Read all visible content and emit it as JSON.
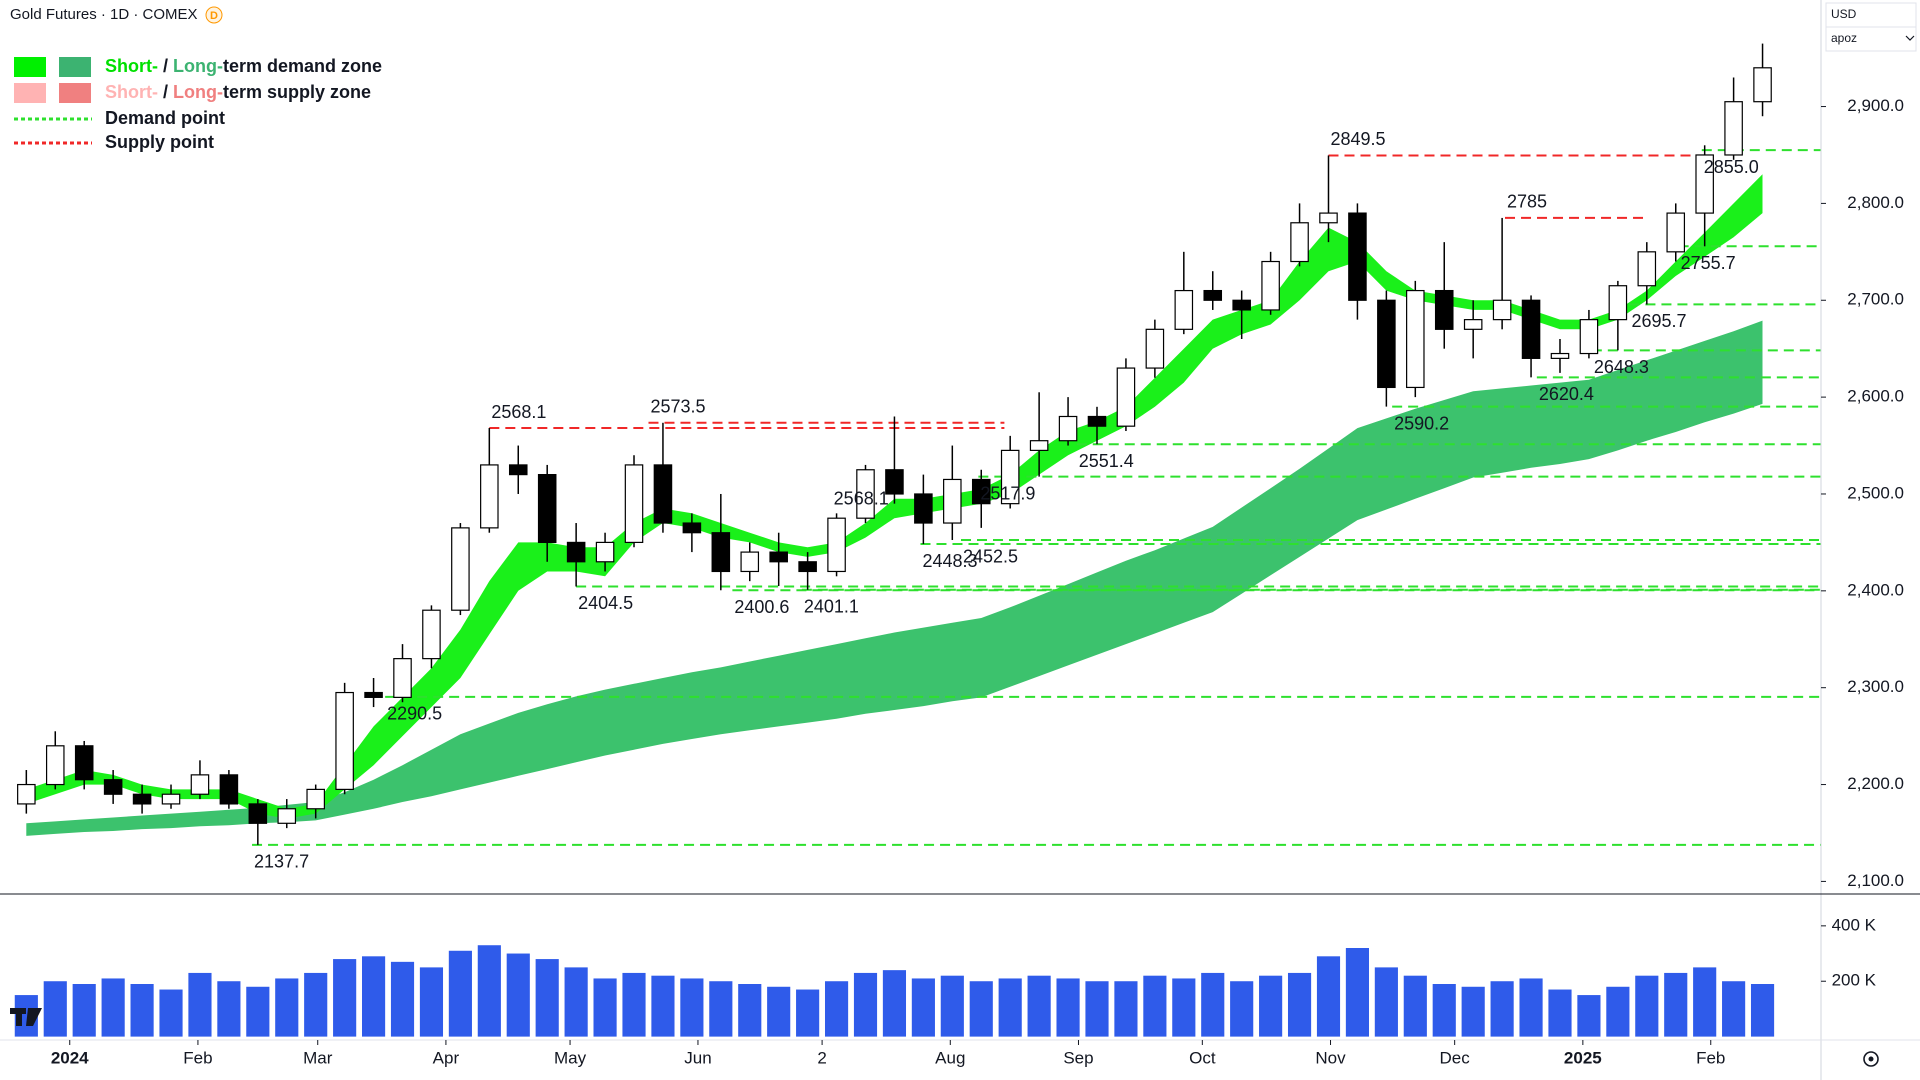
{
  "chart_data": {
    "type": "candlestick",
    "title": "Gold Futures · 1D · COMEX",
    "badge": "D",
    "currency": "USD",
    "scale_mode": "apoz",
    "x": [
      0.5,
      1.5,
      2.5,
      3.5,
      4.5,
      5.5,
      6.5,
      7.5,
      8.5,
      9.5,
      10.5,
      11.5,
      12.5,
      13.5,
      14.5,
      15.5,
      16.5,
      17.5,
      18.5,
      19.5,
      20.5,
      21.5,
      22.5,
      23.5,
      24.5,
      25.5,
      26.5,
      27.5,
      28.5,
      29.5,
      30.5,
      31.5,
      32.5,
      33.5,
      34.5,
      35.5,
      36.5,
      37.5,
      38.5,
      39.5,
      40.5,
      41.5,
      42.5,
      43.5,
      44.5,
      45.5,
      46.5,
      47.5,
      48.5,
      49.5,
      50.5,
      51.5,
      52.5,
      53.5,
      54.5,
      55.5,
      56.5,
      57.5,
      58.5,
      59.5,
      60.5
    ],
    "open": [
      2180,
      2200,
      2240,
      2205,
      2190,
      2180,
      2190,
      2210,
      2180,
      2160,
      2175,
      2195,
      2295,
      2290,
      2330,
      2380,
      2465,
      2530,
      2520,
      2450,
      2430,
      2450,
      2530,
      2470,
      2460,
      2420,
      2440,
      2430,
      2420,
      2475,
      2525,
      2500,
      2470,
      2515,
      2490,
      2545,
      2555,
      2580,
      2570,
      2630,
      2670,
      2710,
      2700,
      2690,
      2740,
      2780,
      2790,
      2700,
      2610,
      2710,
      2670,
      2680,
      2700,
      2640,
      2645,
      2680,
      2715,
      2750,
      2790,
      2850,
      2905
    ],
    "high": [
      2215,
      2255,
      2245,
      2215,
      2200,
      2200,
      2225,
      2215,
      2185,
      2185,
      2200,
      2305,
      2310,
      2345,
      2385,
      2470,
      2568.1,
      2550,
      2530,
      2470,
      2460,
      2540,
      2573.5,
      2480,
      2500,
      2450,
      2460,
      2440,
      2480,
      2530,
      2580,
      2520,
      2550,
      2525,
      2560,
      2605,
      2600,
      2590,
      2640,
      2680,
      2750,
      2730,
      2710,
      2750,
      2800,
      2849.5,
      2800,
      2710,
      2720,
      2760,
      2700,
      2785,
      2705,
      2660,
      2690,
      2720,
      2760,
      2800,
      2860,
      2930,
      2965
    ],
    "low": [
      2170,
      2195,
      2195,
      2180,
      2170,
      2175,
      2185,
      2175,
      2137.7,
      2155,
      2165,
      2190,
      2280,
      2285,
      2320,
      2375,
      2460,
      2500,
      2430,
      2404.5,
      2420,
      2445,
      2460,
      2440,
      2400.6,
      2410,
      2405,
      2401.1,
      2415,
      2470,
      2490,
      2448.3,
      2452.5,
      2465,
      2485,
      2517.9,
      2550,
      2551.4,
      2565,
      2620,
      2665,
      2690,
      2660,
      2685,
      2735,
      2760,
      2680,
      2590.2,
      2600,
      2650,
      2640,
      2670,
      2620.4,
      2625,
      2640,
      2648.3,
      2695.7,
      2740,
      2755.7,
      2845,
      2890
    ],
    "close": [
      2200,
      2240,
      2205,
      2190,
      2180,
      2190,
      2210,
      2180,
      2160,
      2175,
      2195,
      2295,
      2290,
      2330,
      2380,
      2465,
      2530,
      2520,
      2450,
      2430,
      2450,
      2530,
      2470,
      2460,
      2420,
      2440,
      2430,
      2420,
      2475,
      2525,
      2500,
      2470,
      2515,
      2490,
      2545,
      2555,
      2580,
      2570,
      2630,
      2670,
      2710,
      2700,
      2690,
      2740,
      2780,
      2790,
      2700,
      2610,
      2710,
      2670,
      2680,
      2700,
      2640,
      2645,
      2680,
      2715,
      2750,
      2790,
      2850,
      2905,
      2940
    ],
    "candle_up_color": "#ffffff",
    "candle_down_color": "#000000",
    "candle_edge_color": "#000000",
    "xlim": [
      -0.41,
      62.52
    ],
    "xticks": [
      {
        "value": 2,
        "label": "2024",
        "major": true
      },
      {
        "value": 6.43,
        "label": "Feb"
      },
      {
        "value": 10.57,
        "label": "Mar"
      },
      {
        "value": 15,
        "label": "Apr"
      },
      {
        "value": 19.29,
        "label": "May"
      },
      {
        "value": 23.71,
        "label": "Jun"
      },
      {
        "value": 28,
        "label": "2"
      },
      {
        "value": 32.43,
        "label": "Aug"
      },
      {
        "value": 36.86,
        "label": "Sep"
      },
      {
        "value": 41.14,
        "label": "Oct"
      },
      {
        "value": 45.57,
        "label": "Nov"
      },
      {
        "value": 49.86,
        "label": "Dec"
      },
      {
        "value": 54.29,
        "label": "2025",
        "major": true
      },
      {
        "value": 58.71,
        "label": "Feb"
      }
    ],
    "ylim": [
      2087,
      3010
    ],
    "yticks": [
      {
        "value": 2100,
        "label": "2,100.0"
      },
      {
        "value": 2200,
        "label": "2,200.0"
      },
      {
        "value": 2300,
        "label": "2,300.0"
      },
      {
        "value": 2400,
        "label": "2,400.0"
      },
      {
        "value": 2500,
        "label": "2,500.0"
      },
      {
        "value": 2600,
        "label": "2,600.0"
      },
      {
        "value": 2700,
        "label": "2,700.0"
      },
      {
        "value": 2800,
        "label": "2,800.0"
      },
      {
        "value": 2900,
        "label": "2,900.0"
      }
    ],
    "zones": [
      {
        "color": "#3cc26d",
        "upper": [
          2160,
          2162,
          2164,
          2166,
          2168,
          2170,
          2172,
          2174,
          2176,
          2179,
          2182,
          2192,
          2205,
          2220,
          2236,
          2252,
          2263,
          2274,
          2283,
          2291,
          2298,
          2304,
          2310,
          2316,
          2321,
          2327,
          2333,
          2339,
          2345,
          2351,
          2357,
          2362,
          2367,
          2372,
          2383,
          2395,
          2407,
          2419,
          2431,
          2442,
          2454,
          2466,
          2486,
          2506,
          2526,
          2547,
          2568,
          2578,
          2588,
          2597,
          2606,
          2609,
          2612,
          2615,
          2618,
          2628,
          2638,
          2648,
          2658,
          2668,
          2679
        ],
        "lower": [
          2147,
          2149,
          2151,
          2152,
          2154,
          2155,
          2157,
          2158,
          2160,
          2161,
          2163,
          2169,
          2175,
          2182,
          2188,
          2195,
          2202,
          2209,
          2216,
          2223,
          2230,
          2236,
          2242,
          2247,
          2252,
          2256,
          2260,
          2264,
          2268,
          2273,
          2277,
          2281,
          2286,
          2290,
          2301,
          2312,
          2323,
          2334,
          2345,
          2356,
          2367,
          2378,
          2397,
          2416,
          2435,
          2454,
          2473,
          2484,
          2495,
          2506,
          2517,
          2522,
          2527,
          2531,
          2536,
          2545,
          2555,
          2564,
          2574,
          2583,
          2593
        ]
      },
      {
        "color": "#1af01a",
        "upper": [
          2195,
          2205,
          2215,
          2210,
          2200,
          2195,
          2195,
          2195,
          2185,
          2175,
          2180,
          2220,
          2260,
          2290,
          2320,
          2360,
          2410,
          2450,
          2450,
          2445,
          2445,
          2470,
          2485,
          2480,
          2470,
          2460,
          2450,
          2445,
          2450,
          2470,
          2495,
          2495,
          2500,
          2505,
          2520,
          2545,
          2565,
          2575,
          2590,
          2620,
          2650,
          2680,
          2690,
          2700,
          2740,
          2775,
          2760,
          2730,
          2710,
          2705,
          2700,
          2700,
          2690,
          2680,
          2680,
          2690,
          2710,
          2740,
          2770,
          2800,
          2830
        ],
        "lower": [
          2180,
          2190,
          2200,
          2200,
          2190,
          2185,
          2185,
          2185,
          2170,
          2165,
          2170,
          2195,
          2220,
          2250,
          2280,
          2310,
          2355,
          2400,
          2420,
          2420,
          2415,
          2450,
          2470,
          2465,
          2455,
          2450,
          2440,
          2435,
          2440,
          2455,
          2475,
          2480,
          2485,
          2490,
          2500,
          2520,
          2540,
          2555,
          2570,
          2590,
          2615,
          2650,
          2665,
          2675,
          2700,
          2730,
          2740,
          2710,
          2700,
          2695,
          2690,
          2690,
          2680,
          2670,
          2670,
          2680,
          2700,
          2725,
          2745,
          2765,
          2790
        ]
      }
    ],
    "levels": [
      {
        "kind": "supply",
        "value": 2568.1,
        "label": "2568.1",
        "x_start": 16.5,
        "x_end": 34.3
      },
      {
        "kind": "supply",
        "value": 2573.5,
        "label": "2573.5",
        "x_start": 22.0,
        "x_end": 34.3
      },
      {
        "kind": "supply",
        "value": 2849.5,
        "label": "2849.5",
        "x_start": 45.5,
        "x_end": 58.4
      },
      {
        "kind": "supply",
        "value": 2785,
        "label": "2785",
        "x_start": 51.6,
        "x_end": 56.5
      },
      {
        "kind": "demand",
        "value": 2137.7,
        "label": "2137.7",
        "x_start": 8.3
      },
      {
        "kind": "demand",
        "value": 2290.5,
        "label": "2290.5",
        "x_start": 12.9
      },
      {
        "kind": "demand",
        "value": 2404.5,
        "label": "2404.5",
        "x_start": 19.5
      },
      {
        "kind": "demand",
        "value": 2400.6,
        "label": "2400.6",
        "x_start": 24.9
      },
      {
        "kind": "demand",
        "value": 2401.1,
        "label": "2401.1",
        "x_start": 27.3
      },
      {
        "kind": "demand",
        "value": 2448.3,
        "label": "2448.3",
        "x_start": 31.4
      },
      {
        "kind": "demand",
        "value": 2452.5,
        "label": "2452.5",
        "x_start": 32.8
      },
      {
        "kind": "demand",
        "value": 2517.9,
        "label": "2517.9",
        "x_start": 33.4
      },
      {
        "kind": "demand",
        "value": 2551.4,
        "label": "2551.4",
        "x_start": 36.8
      },
      {
        "kind": "demand",
        "value": 2590.2,
        "label": "2590.2",
        "x_start": 47.7
      },
      {
        "kind": "demand",
        "value": 2620.4,
        "label": "2620.4",
        "x_start": 52.7
      },
      {
        "kind": "demand",
        "value": 2648.3,
        "label": "2648.3",
        "x_start": 54.6
      },
      {
        "kind": "demand",
        "value": 2695.7,
        "label": "2695.7",
        "x_start": 55.9
      },
      {
        "kind": "demand",
        "value": 2755.7,
        "label": "2755.7",
        "x_start": 57.6
      },
      {
        "kind": "demand",
        "value": 2855.0,
        "label": "2855.0",
        "x_start": 58.4
      }
    ],
    "level_colors": {
      "supply": "#f02828",
      "demand": "#2ee02e"
    },
    "annotations": [
      {
        "text": "2568.1",
        "x": 28.4,
        "y": 2494
      }
    ],
    "legend": [
      {
        "swatches": [
          "#00f000",
          "#3cb371"
        ],
        "parts": [
          {
            "text": "Short-",
            "color": "#00e000"
          },
          {
            "text": " / ",
            "color": "#131722"
          },
          {
            "text": "Long-",
            "color": "#3cb371"
          },
          {
            "text": "term demand zone",
            "color": "#131722"
          }
        ]
      },
      {
        "swatches": [
          "#ffb3b3",
          "#f08080"
        ],
        "parts": [
          {
            "text": "Short-",
            "color": "#ffb3b3"
          },
          {
            "text": " / ",
            "color": "#131722"
          },
          {
            "text": "Long-",
            "color": "#f08080"
          },
          {
            "text": "term supply zone",
            "color": "#131722"
          }
        ]
      },
      {
        "line_color": "#2ee02e",
        "parts": [
          {
            "text": "Demand point",
            "color": "#131722"
          }
        ]
      },
      {
        "line_color": "#f02828",
        "parts": [
          {
            "text": "Supply point",
            "color": "#131722"
          }
        ]
      }
    ],
    "volume": {
      "values": [
        150,
        200,
        190,
        210,
        190,
        170,
        230,
        200,
        180,
        210,
        230,
        280,
        290,
        270,
        250,
        310,
        330,
        300,
        280,
        250,
        210,
        230,
        220,
        210,
        200,
        190,
        180,
        170,
        200,
        230,
        240,
        210,
        220,
        200,
        210,
        220,
        210,
        200,
        200,
        220,
        210,
        230,
        200,
        220,
        230,
        290,
        320,
        250,
        220,
        190,
        180,
        200,
        210,
        170,
        150,
        180,
        220,
        230,
        250,
        200,
        190
      ],
      "color": "#2f5bea",
      "ylim": [
        -5,
        515
      ],
      "yticks": [
        {
          "value": 200,
          "label": "200 K"
        },
        {
          "value": 400,
          "label": "400 K"
        }
      ]
    }
  }
}
